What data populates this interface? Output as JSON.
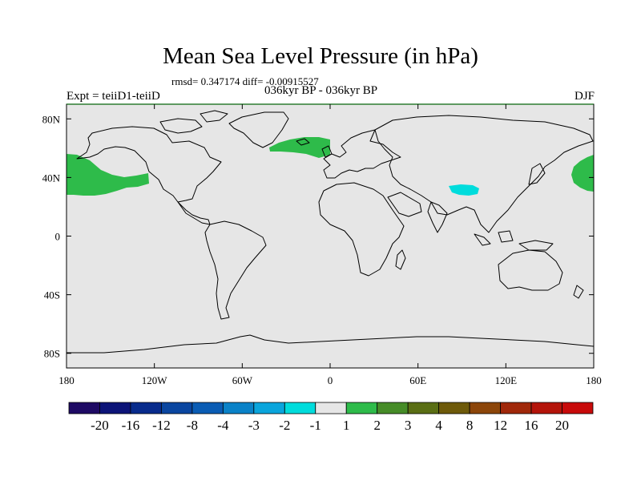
{
  "header": {
    "title": "Mean Sea Level Pressure (in hPa)",
    "stats": "rmsd= 0.347174 diff= -0.00915527",
    "subtitle": "036kyr BP - 036kyr BP",
    "experiment": "Expt = teiiD1-teiiD",
    "season": "DJF"
  },
  "map": {
    "x_ticks": [
      {
        "lon": -180,
        "label": "180"
      },
      {
        "lon": -120,
        "label": "120W"
      },
      {
        "lon": -60,
        "label": "60W"
      },
      {
        "lon": 0,
        "label": "0"
      },
      {
        "lon": 60,
        "label": "60E"
      },
      {
        "lon": 120,
        "label": "120E"
      },
      {
        "lon": 180,
        "label": "180"
      }
    ],
    "y_ticks": [
      {
        "lat": 80,
        "label": "80N"
      },
      {
        "lat": 40,
        "label": "40N"
      },
      {
        "lat": 0,
        "label": "0"
      },
      {
        "lat": -40,
        "label": "40S"
      },
      {
        "lat": -80,
        "label": "80S"
      }
    ],
    "background_color": "#e6e6e6",
    "anomaly_regions": [
      {
        "name": "North Pacific (east)",
        "class": "1 to 2",
        "color": "#2ebb4a"
      },
      {
        "name": "North Pacific (west)",
        "class": "1 to 2",
        "color": "#2ebb4a"
      },
      {
        "name": "North Atlantic",
        "class": "1 to 2",
        "color": "#2ebb4a"
      },
      {
        "name": "Tibetan Plateau",
        "class": "-2 to -1",
        "color": "#00dcdc"
      }
    ]
  },
  "colorbar": {
    "labels": [
      "-20",
      "-16",
      "-12",
      "-8",
      "-4",
      "-3",
      "-2",
      "-1",
      "1",
      "2",
      "3",
      "4",
      "8",
      "12",
      "16",
      "20"
    ],
    "colors": [
      "#1e0a64",
      "#0c1478",
      "#082b8c",
      "#0a46a0",
      "#0a5cb4",
      "#0a82c8",
      "#0aa5dc",
      "#00dcdc",
      "#e6e6e6",
      "#2ebb4a",
      "#468c28",
      "#5a6e14",
      "#6e5a0a",
      "#8c460a",
      "#a0280a",
      "#b4140a",
      "#c80a0a"
    ]
  }
}
